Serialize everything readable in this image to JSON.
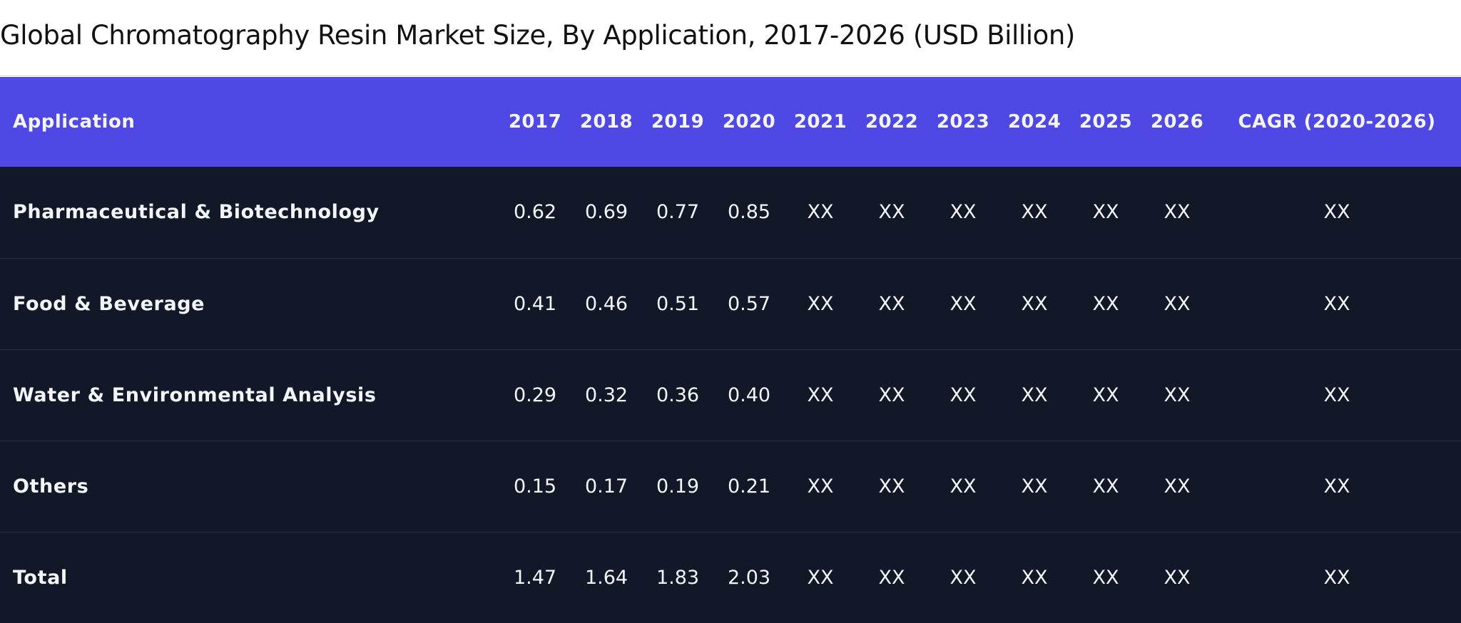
{
  "chart_data": {
    "type": "table",
    "title": "Global Chromatography Resin Market Size, By Application, 2017-2026 (USD Billion)",
    "columns": [
      "Application",
      "2017",
      "2018",
      "2019",
      "2020",
      "2021",
      "2022",
      "2023",
      "2024",
      "2025",
      "2026",
      "CAGR (2020-2026)"
    ],
    "rows": [
      [
        "Pharmaceutical & Biotechnology",
        "0.62",
        "0.69",
        "0.77",
        "0.85",
        "XX",
        "XX",
        "XX",
        "XX",
        "XX",
        "XX",
        "XX"
      ],
      [
        "Food & Beverage",
        "0.41",
        "0.46",
        "0.51",
        "0.57",
        "XX",
        "XX",
        "XX",
        "XX",
        "XX",
        "XX",
        "XX"
      ],
      [
        "Water & Environmental Analysis",
        "0.29",
        "0.32",
        "0.36",
        "0.40",
        "XX",
        "XX",
        "XX",
        "XX",
        "XX",
        "XX",
        "XX"
      ],
      [
        "Others",
        "0.15",
        "0.17",
        "0.19",
        "0.21",
        "XX",
        "XX",
        "XX",
        "XX",
        "XX",
        "XX",
        "XX"
      ],
      [
        "Total",
        "1.47",
        "1.64",
        "1.83",
        "2.03",
        "XX",
        "XX",
        "XX",
        "XX",
        "XX",
        "XX",
        "XX"
      ]
    ]
  },
  "colors": {
    "header_bg": "#5048e5",
    "body_bg": "#121828",
    "row_divider": "#26303f",
    "text_light": "#f4f5f8",
    "title_text": "#111111"
  }
}
